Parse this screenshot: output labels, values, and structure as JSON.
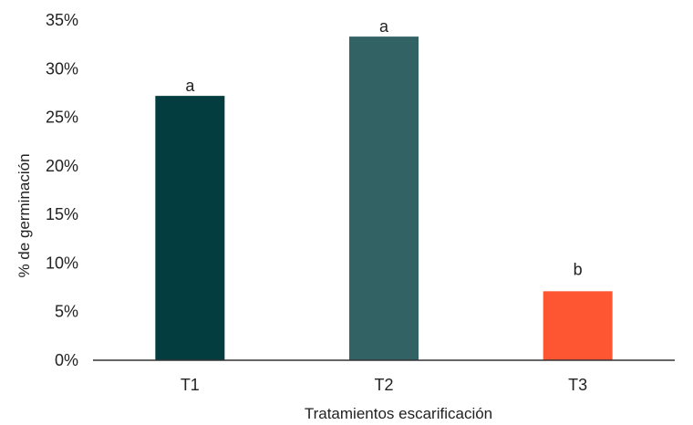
{
  "chart_data": {
    "type": "bar",
    "title": "",
    "xlabel": "Tratamientos escarificación",
    "ylabel": "% de germinación",
    "categories": [
      "T1",
      "T2",
      "T3"
    ],
    "values": [
      27.2,
      33.3,
      7.1
    ],
    "significance_labels": [
      "a",
      "a",
      "b"
    ],
    "bar_colors": [
      "#033d40",
      "#336265",
      "#fe5533"
    ],
    "ylim": [
      0,
      35
    ],
    "yticks": [
      0,
      5,
      10,
      15,
      20,
      25,
      30,
      35
    ],
    "ytick_labels": [
      "0%",
      "5%",
      "10%",
      "15%",
      "20%",
      "25%",
      "30%",
      "35%"
    ],
    "grid": false,
    "legend": "none"
  }
}
